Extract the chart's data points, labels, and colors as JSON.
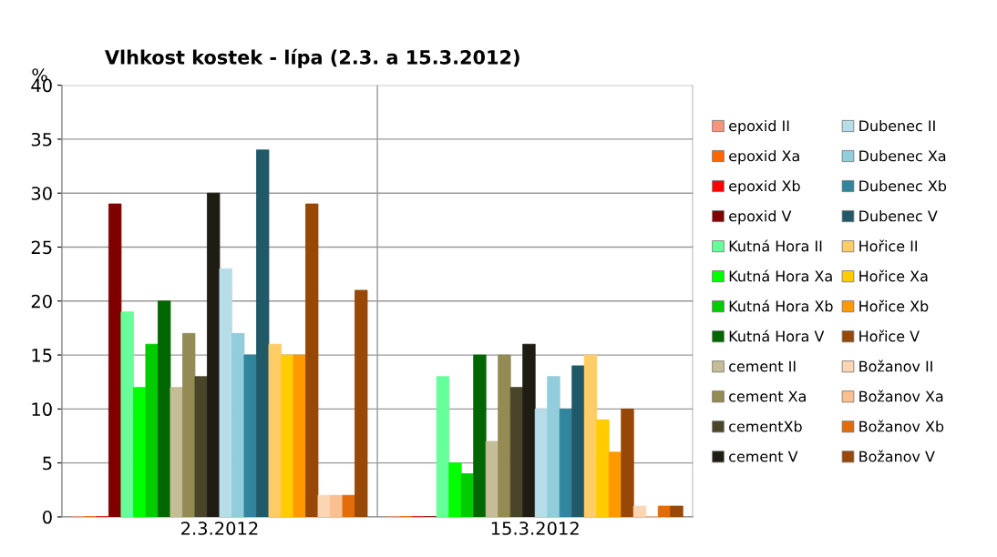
{
  "chart_data": {
    "type": "bar",
    "title": "Vlhkost kostek - lípa (2.3. a 15.3.2012)",
    "ylabel": "%",
    "categories": [
      "2.3.2012",
      "15.3.2012"
    ],
    "ylim": [
      0,
      40
    ],
    "yticks": [
      0,
      5,
      10,
      15,
      20,
      25,
      30,
      35,
      40
    ],
    "grid": true,
    "legend": "right",
    "series": [
      {
        "name": "epoxid II",
        "color": "#f4967a",
        "values": [
          0,
          0
        ]
      },
      {
        "name": "epoxid Xa",
        "color": "#ff6600",
        "values": [
          0,
          0
        ]
      },
      {
        "name": "epoxid Xb",
        "color": "#ff0000",
        "values": [
          0,
          0
        ]
      },
      {
        "name": "epoxid V",
        "color": "#800000",
        "values": [
          29,
          0
        ]
      },
      {
        "name": "Kutná Hora II",
        "color": "#66ff99",
        "values": [
          19,
          13
        ]
      },
      {
        "name": "Kutná Hora Xa",
        "color": "#00ff00",
        "values": [
          12,
          5
        ]
      },
      {
        "name": "Kutná Hora Xb",
        "color": "#00cc00",
        "values": [
          16,
          4
        ]
      },
      {
        "name": "Kutná Hora V",
        "color": "#006600",
        "values": [
          20,
          15
        ]
      },
      {
        "name": "cement II",
        "color": "#c4bd97",
        "values": [
          12,
          7
        ]
      },
      {
        "name": "cement Xa",
        "color": "#948a54",
        "values": [
          17,
          15
        ]
      },
      {
        "name": "cementXb",
        "color": "#4a452a",
        "values": [
          13,
          12
        ]
      },
      {
        "name": "cement V",
        "color": "#1f1d13",
        "values": [
          30,
          16
        ]
      },
      {
        "name": "Dubenec II",
        "color": "#b7dde8",
        "values": [
          23,
          10
        ]
      },
      {
        "name": "Dubenec Xa",
        "color": "#92cddc",
        "values": [
          17,
          13
        ]
      },
      {
        "name": "Dubenec Xb",
        "color": "#31859c",
        "values": [
          15,
          10
        ]
      },
      {
        "name": "Dubenec V",
        "color": "#215968",
        "values": [
          34,
          14
        ]
      },
      {
        "name": "Hořice II",
        "color": "#ffcc66",
        "values": [
          16,
          15
        ]
      },
      {
        "name": "Hořice Xa",
        "color": "#ffcc00",
        "values": [
          15,
          9
        ]
      },
      {
        "name": "Hořice Xb",
        "color": "#ff9900",
        "values": [
          15,
          6
        ]
      },
      {
        "name": "Hořice V",
        "color": "#974706",
        "values": [
          29,
          10
        ]
      },
      {
        "name": "Božanov II",
        "color": "#fcd5b5",
        "values": [
          2,
          1
        ]
      },
      {
        "name": "Božanov Xa",
        "color": "#fac090",
        "values": [
          2,
          0
        ]
      },
      {
        "name": "Božanov Xb",
        "color": "#e36c09",
        "values": [
          2,
          1
        ]
      },
      {
        "name": "Božanov V",
        "color": "#984807",
        "values": [
          21,
          1
        ]
      }
    ]
  }
}
